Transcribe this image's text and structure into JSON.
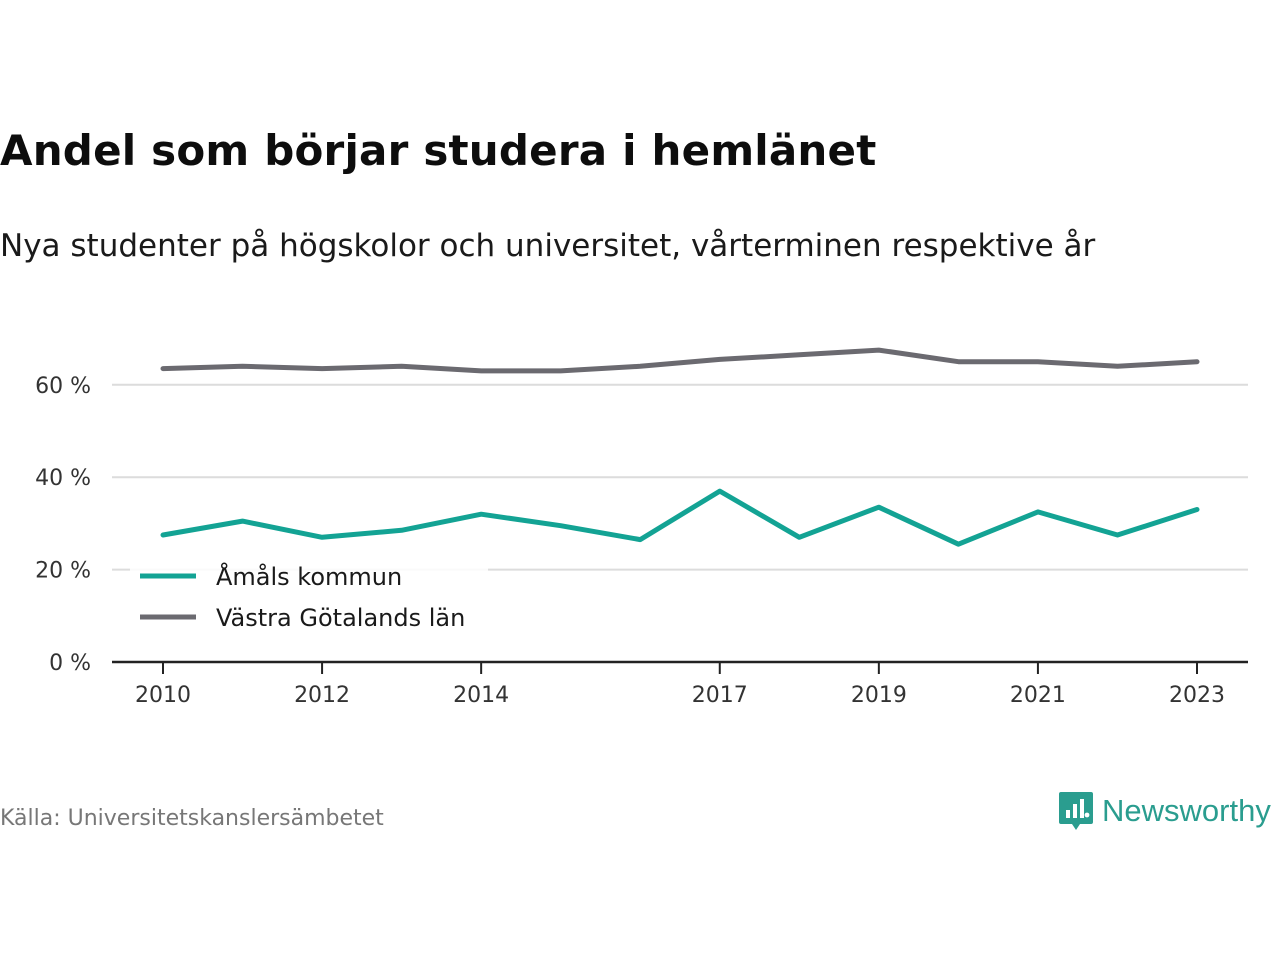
{
  "title": "Andel som börjar studera i hemlänet",
  "subtitle": "Nya studenter på högskolor och universitet, vårterminen respektive år",
  "source": "Källa: Universitetskanslersämbetet",
  "brand": {
    "name": "Newsworthy",
    "icon": "newsworthy-logo-icon",
    "color": "#2a9d8f"
  },
  "chart_data": {
    "type": "line",
    "x": [
      2010,
      2011,
      2012,
      2013,
      2014,
      2015,
      2016,
      2017,
      2018,
      2019,
      2020,
      2021,
      2022,
      2023
    ],
    "series": [
      {
        "name": "Åmåls kommun",
        "color": "#13a394",
        "values": [
          27.5,
          30.5,
          27.0,
          28.5,
          32.0,
          29.5,
          26.5,
          37.0,
          27.0,
          33.5,
          25.5,
          32.5,
          27.5,
          33.0
        ]
      },
      {
        "name": "Västra Götalands län",
        "color": "#6b6a70",
        "values": [
          63.5,
          64.0,
          63.5,
          64.0,
          63.0,
          63.0,
          64.0,
          65.5,
          66.5,
          67.5,
          65.0,
          65.0,
          64.0,
          65.0
        ]
      }
    ],
    "x_ticks": [
      2010,
      2012,
      2014,
      2017,
      2019,
      2021,
      2023
    ],
    "x_tick_labels": [
      "2010",
      "2012",
      "2014",
      "2017",
      "2019",
      "2021",
      "2023"
    ],
    "y_ticks": [
      0,
      20,
      40,
      60
    ],
    "y_tick_labels": [
      "0 %",
      "20 %",
      "40 %",
      "60 %"
    ],
    "ylim": [
      0,
      75
    ],
    "grid": "horizontal",
    "legend_position": "bottom-left"
  }
}
